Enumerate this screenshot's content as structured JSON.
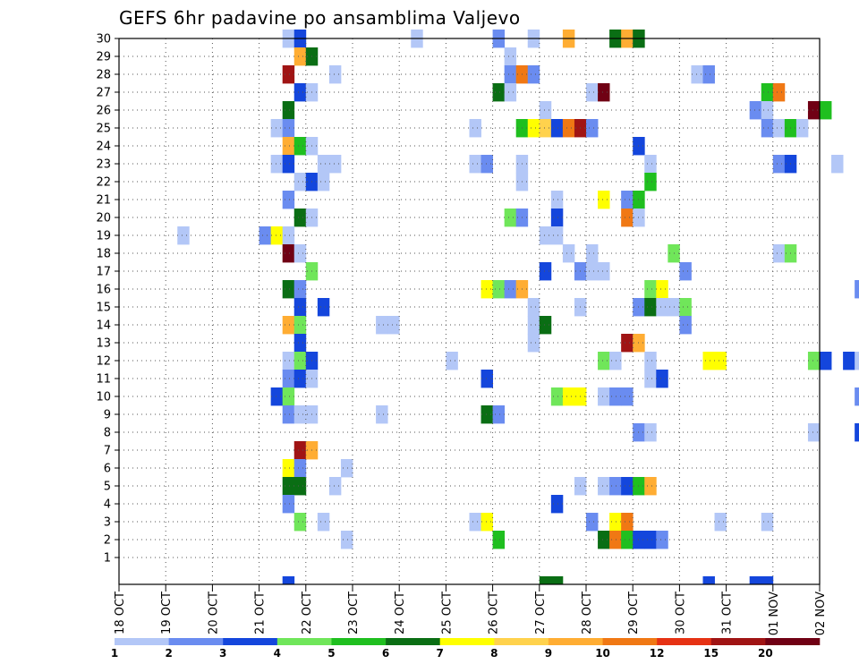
{
  "chart_data": {
    "type": "heatmap",
    "title": "GEFS 6hr padavine po ansamblima Valjevo",
    "xlabel": "",
    "ylabel": "",
    "y_ticks": [
      1,
      2,
      3,
      4,
      5,
      6,
      7,
      8,
      9,
      10,
      11,
      12,
      13,
      14,
      15,
      16,
      17,
      18,
      19,
      20,
      21,
      22,
      23,
      24,
      25,
      26,
      27,
      28,
      29,
      30
    ],
    "ylim": [
      0,
      30
    ],
    "x_ticks": [
      "18 OCT",
      "19 OCT",
      "20 OCT",
      "21 OCT",
      "22 OCT",
      "23 OCT",
      "24 OCT",
      "25 OCT",
      "26 OCT",
      "27 OCT",
      "28 OCT",
      "29 OCT",
      "30 OCT",
      "31 OCT",
      "01 NOV",
      "02 NOV"
    ],
    "x_step_hours": 6,
    "grid": true,
    "colorbar": {
      "labels": [
        "1",
        "2",
        "3",
        "4",
        "5",
        "6",
        "7",
        "8",
        "9",
        "10",
        "12",
        "15",
        "20"
      ],
      "colors": [
        "#b3c7f7",
        "#6a8cf0",
        "#1446dc",
        "#70e65a",
        "#1fbf1f",
        "#0a6e14",
        "#ffff00",
        "#ffd24d",
        "#ffad33",
        "#f07814",
        "#e63214",
        "#a01414",
        "#700014"
      ]
    },
    "cells": [
      [
        30,
        14,
        1
      ],
      [
        30,
        15,
        3
      ],
      [
        30,
        25,
        1
      ],
      [
        30,
        32,
        2
      ],
      [
        30,
        35,
        1
      ],
      [
        30,
        38,
        9
      ],
      [
        30,
        42,
        6
      ],
      [
        30,
        43,
        9
      ],
      [
        30,
        44,
        6
      ],
      [
        30,
        66,
        1
      ],
      [
        30,
        67,
        9
      ],
      [
        29,
        15,
        9
      ],
      [
        29,
        16,
        6
      ],
      [
        29,
        33,
        1
      ],
      [
        28,
        14,
        12
      ],
      [
        28,
        18,
        1
      ],
      [
        28,
        33,
        2
      ],
      [
        28,
        34,
        10
      ],
      [
        28,
        35,
        2
      ],
      [
        28,
        49,
        1
      ],
      [
        28,
        50,
        2
      ],
      [
        27,
        15,
        3
      ],
      [
        27,
        16,
        1
      ],
      [
        27,
        32,
        6
      ],
      [
        27,
        33,
        1
      ],
      [
        27,
        40,
        1
      ],
      [
        27,
        41,
        13
      ],
      [
        27,
        55,
        5
      ],
      [
        27,
        56,
        10
      ],
      [
        27,
        67,
        6
      ],
      [
        26,
        14,
        6
      ],
      [
        26,
        36,
        1
      ],
      [
        26,
        54,
        2
      ],
      [
        26,
        55,
        1
      ],
      [
        26,
        59,
        13
      ],
      [
        26,
        60,
        5
      ],
      [
        25,
        13,
        1
      ],
      [
        25,
        14,
        2
      ],
      [
        25,
        30,
        1
      ],
      [
        25,
        34,
        5
      ],
      [
        25,
        35,
        7
      ],
      [
        25,
        36,
        8
      ],
      [
        25,
        37,
        3
      ],
      [
        25,
        38,
        10
      ],
      [
        25,
        39,
        12
      ],
      [
        25,
        40,
        2
      ],
      [
        25,
        55,
        2
      ],
      [
        25,
        56,
        1
      ],
      [
        25,
        57,
        5
      ],
      [
        25,
        58,
        1
      ],
      [
        24,
        14,
        9
      ],
      [
        24,
        15,
        5
      ],
      [
        24,
        16,
        1
      ],
      [
        24,
        44,
        3
      ],
      [
        23,
        13,
        1
      ],
      [
        23,
        14,
        3
      ],
      [
        23,
        17,
        1
      ],
      [
        23,
        18,
        1
      ],
      [
        23,
        30,
        1
      ],
      [
        23,
        31,
        2
      ],
      [
        23,
        34,
        1
      ],
      [
        23,
        45,
        1
      ],
      [
        23,
        56,
        2
      ],
      [
        23,
        57,
        3
      ],
      [
        23,
        61,
        1
      ],
      [
        22,
        15,
        1
      ],
      [
        22,
        16,
        3
      ],
      [
        22,
        17,
        1
      ],
      [
        22,
        34,
        1
      ],
      [
        22,
        45,
        5
      ],
      [
        22,
        64,
        9
      ],
      [
        22,
        65,
        9
      ],
      [
        21,
        14,
        2
      ],
      [
        21,
        37,
        1
      ],
      [
        21,
        41,
        7
      ],
      [
        21,
        43,
        2
      ],
      [
        21,
        44,
        5
      ],
      [
        20,
        15,
        6
      ],
      [
        20,
        16,
        1
      ],
      [
        20,
        33,
        4
      ],
      [
        20,
        34,
        2
      ],
      [
        20,
        37,
        3
      ],
      [
        20,
        43,
        10
      ],
      [
        20,
        44,
        1
      ],
      [
        19,
        5,
        1
      ],
      [
        19,
        12,
        2
      ],
      [
        19,
        13,
        7
      ],
      [
        19,
        14,
        1
      ],
      [
        19,
        36,
        1
      ],
      [
        19,
        37,
        1
      ],
      [
        18,
        14,
        13
      ],
      [
        18,
        15,
        1
      ],
      [
        18,
        38,
        1
      ],
      [
        18,
        40,
        1
      ],
      [
        18,
        47,
        4
      ],
      [
        18,
        56,
        1
      ],
      [
        18,
        57,
        4
      ],
      [
        17,
        16,
        4
      ],
      [
        17,
        36,
        3
      ],
      [
        17,
        39,
        2
      ],
      [
        17,
        40,
        1
      ],
      [
        17,
        41,
        1
      ],
      [
        17,
        48,
        2
      ],
      [
        17,
        68,
        5
      ],
      [
        16,
        14,
        6
      ],
      [
        16,
        15,
        2
      ],
      [
        16,
        31,
        7
      ],
      [
        16,
        32,
        4
      ],
      [
        16,
        33,
        2
      ],
      [
        16,
        34,
        9
      ],
      [
        16,
        45,
        4
      ],
      [
        16,
        46,
        7
      ],
      [
        16,
        63,
        2
      ],
      [
        16,
        68,
        2
      ],
      [
        15,
        15,
        3
      ],
      [
        15,
        17,
        3
      ],
      [
        15,
        35,
        1
      ],
      [
        15,
        39,
        1
      ],
      [
        15,
        44,
        2
      ],
      [
        15,
        45,
        6
      ],
      [
        15,
        46,
        1
      ],
      [
        15,
        47,
        1
      ],
      [
        15,
        48,
        4
      ],
      [
        14,
        14,
        9
      ],
      [
        14,
        15,
        4
      ],
      [
        14,
        22,
        1
      ],
      [
        14,
        23,
        1
      ],
      [
        14,
        35,
        1
      ],
      [
        14,
        36,
        6
      ],
      [
        14,
        48,
        2
      ],
      [
        13,
        15,
        3
      ],
      [
        13,
        35,
        1
      ],
      [
        13,
        43,
        12
      ],
      [
        13,
        44,
        9
      ],
      [
        12,
        14,
        1
      ],
      [
        12,
        15,
        4
      ],
      [
        12,
        16,
        3
      ],
      [
        12,
        28,
        1
      ],
      [
        12,
        41,
        4
      ],
      [
        12,
        42,
        1
      ],
      [
        12,
        45,
        1
      ],
      [
        12,
        50,
        7
      ],
      [
        12,
        51,
        7
      ],
      [
        12,
        59,
        4
      ],
      [
        12,
        60,
        3
      ],
      [
        12,
        62,
        3
      ],
      [
        12,
        63,
        1
      ],
      [
        12,
        64,
        13
      ],
      [
        12,
        65,
        10
      ],
      [
        12,
        66,
        13
      ],
      [
        12,
        67,
        12
      ],
      [
        12,
        68,
        9
      ],
      [
        11,
        14,
        2
      ],
      [
        11,
        15,
        3
      ],
      [
        11,
        16,
        1
      ],
      [
        11,
        31,
        3
      ],
      [
        11,
        45,
        1
      ],
      [
        11,
        46,
        3
      ],
      [
        10,
        13,
        3
      ],
      [
        10,
        14,
        4
      ],
      [
        10,
        37,
        4
      ],
      [
        10,
        38,
        7
      ],
      [
        10,
        39,
        7
      ],
      [
        10,
        41,
        1
      ],
      [
        10,
        42,
        2
      ],
      [
        10,
        43,
        2
      ],
      [
        10,
        63,
        2
      ],
      [
        9,
        14,
        2
      ],
      [
        9,
        15,
        1
      ],
      [
        9,
        16,
        1
      ],
      [
        9,
        22,
        1
      ],
      [
        9,
        31,
        6
      ],
      [
        9,
        32,
        2
      ],
      [
        8,
        44,
        2
      ],
      [
        8,
        45,
        1
      ],
      [
        8,
        59,
        1
      ],
      [
        8,
        63,
        3
      ],
      [
        7,
        15,
        12
      ],
      [
        7,
        16,
        9
      ],
      [
        6,
        14,
        7
      ],
      [
        6,
        15,
        2
      ],
      [
        6,
        19,
        1
      ],
      [
        5,
        14,
        6
      ],
      [
        5,
        15,
        6
      ],
      [
        5,
        18,
        1
      ],
      [
        5,
        39,
        1
      ],
      [
        5,
        41,
        1
      ],
      [
        5,
        42,
        2
      ],
      [
        5,
        43,
        3
      ],
      [
        5,
        44,
        5
      ],
      [
        5,
        45,
        9
      ],
      [
        4,
        14,
        2
      ],
      [
        4,
        37,
        3
      ],
      [
        3,
        15,
        4
      ],
      [
        3,
        17,
        1
      ],
      [
        3,
        30,
        1
      ],
      [
        3,
        31,
        7
      ],
      [
        3,
        40,
        2
      ],
      [
        3,
        42,
        7
      ],
      [
        3,
        43,
        10
      ],
      [
        3,
        51,
        1
      ],
      [
        3,
        55,
        1
      ],
      [
        2,
        19,
        1
      ],
      [
        2,
        32,
        5
      ],
      [
        2,
        41,
        6
      ],
      [
        2,
        42,
        10
      ],
      [
        2,
        43,
        5
      ],
      [
        2,
        44,
        3
      ],
      [
        2,
        45,
        3
      ],
      [
        2,
        46,
        2
      ]
    ],
    "bottom_row_marks": [
      14,
      36,
      37,
      50,
      54,
      55
    ]
  }
}
